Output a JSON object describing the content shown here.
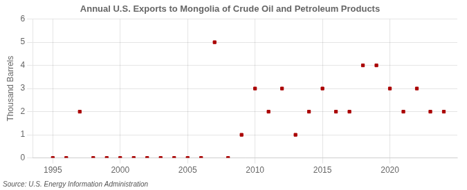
{
  "chart_data": {
    "type": "scatter",
    "title": "Annual U.S. Exports to Mongolia of Crude Oil and Petroleum Products",
    "y_label": "Thousand Barrels",
    "annotations": [
      "Source: U.S. Energy Information Administration"
    ],
    "x": [
      1995,
      1996,
      1997,
      1998,
      1999,
      2000,
      2001,
      2002,
      2003,
      2004,
      2005,
      2006,
      2007,
      2008,
      2009,
      2010,
      2011,
      2012,
      2013,
      2014,
      2015,
      2016,
      2017,
      2018,
      2019,
      2020,
      2021,
      2022,
      2023,
      2024
    ],
    "values": [
      0,
      0,
      2,
      0,
      0,
      0,
      0,
      0,
      0,
      0,
      0,
      0,
      5,
      0,
      1,
      3,
      2,
      3,
      1,
      2,
      3,
      2,
      2,
      4,
      4,
      3,
      2,
      3,
      2,
      2
    ],
    "color": "#aa0000",
    "marker": "square",
    "xlim": [
      1993.5,
      2025
    ],
    "xticks": [
      1995,
      2000,
      2005,
      2010,
      2015,
      2020
    ],
    "ylim": [
      0,
      6
    ],
    "yticks": [
      0,
      1,
      2,
      3,
      4,
      5,
      6
    ],
    "grid": true
  }
}
